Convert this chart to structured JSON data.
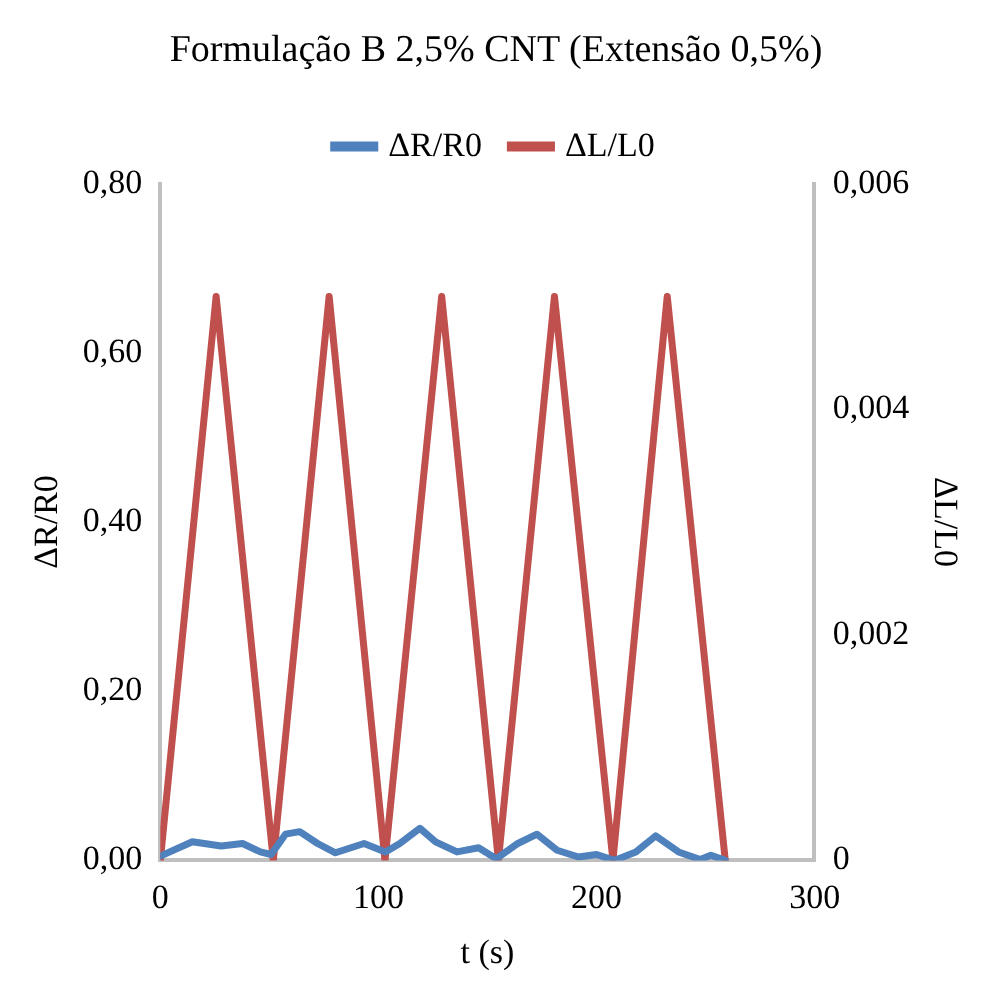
{
  "chart_data": {
    "type": "line",
    "title": "Formulação B 2,5% CNT (Extensão 0,5%)",
    "xlabel": "t (s)",
    "ylabel": "ΔR/R0",
    "y2label": "ΔL/L0",
    "xlim": [
      0,
      300
    ],
    "xticks": [
      0,
      100,
      200,
      300
    ],
    "ylim": [
      0,
      0.8
    ],
    "yticks": [
      {
        "value": 0,
        "label": "0,00"
      },
      {
        "value": 0.2,
        "label": "0,20"
      },
      {
        "value": 0.4,
        "label": "0,40"
      },
      {
        "value": 0.6,
        "label": "0,60"
      },
      {
        "value": 0.8,
        "label": "0,80"
      }
    ],
    "y2lim": [
      0,
      0.006
    ],
    "y2ticks": [
      0,
      {
        "value": 0.002,
        "label": "0,002"
      },
      {
        "value": 0.004,
        "label": "0,004"
      },
      {
        "value": 0.006,
        "label": "0,006"
      }
    ],
    "grid": false,
    "legend": "top",
    "marker": "none",
    "line_style": "solid",
    "series": [
      {
        "name": "ΔR/R0",
        "color": "#4f81bd",
        "x": [
          0,
          14.7,
          27.9,
          37.7,
          45.9,
          50.8,
          57.4,
          63.9,
          72.1,
          80.3,
          93.4,
          103.2,
          109.8,
          119,
          126.2,
          136,
          145.9,
          154,
          163.9,
          172.7,
          181.9,
          191.7,
          200,
          208.1,
          218,
          227.1,
          237.6,
          247.5,
          252.4,
          259
        ],
        "values": [
          0.005,
          0.022,
          0.017,
          0.02,
          0.01,
          0.007,
          0.031,
          0.034,
          0.02,
          0.009,
          0.02,
          0.01,
          0.02,
          0.038,
          0.022,
          0.01,
          0.015,
          0.002,
          0.02,
          0.031,
          0.012,
          0.004,
          0.007,
          0,
          0.01,
          0.029,
          0.01,
          0.001,
          0.006,
          0
        ]
      },
      {
        "name": "ΔL/L0",
        "color": "#c0504d",
        "axis": "y2",
        "x": [
          0,
          25.6,
          51.8,
          77.4,
          103,
          129,
          155,
          180.7,
          207.5,
          232.4,
          259
        ],
        "values": [
          0,
          0.005,
          0,
          0.005,
          0,
          0.005,
          0,
          0.005,
          0,
          0.005,
          0
        ]
      }
    ]
  }
}
